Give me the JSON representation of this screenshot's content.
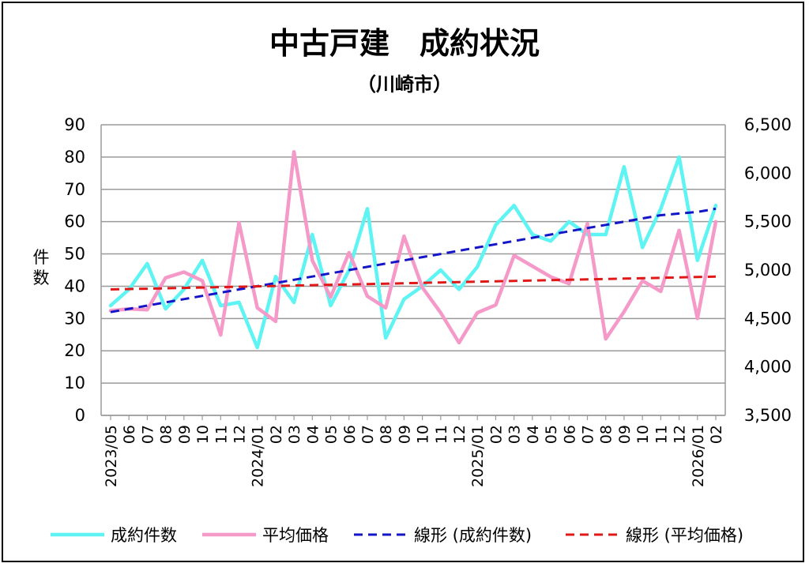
{
  "chart_data": {
    "type": "line",
    "title": "中古戸建　成約状況",
    "subtitle": "（川崎市）",
    "ylabel": "件数",
    "ylim_left": [
      0,
      90
    ],
    "ylim_right": [
      3500,
      6500
    ],
    "yticks_left": [
      "0",
      "10",
      "20",
      "30",
      "40",
      "50",
      "60",
      "70",
      "80",
      "90"
    ],
    "yticks_right": [
      "3,500",
      "4,000",
      "4,500",
      "5,000",
      "5,500",
      "6,000",
      "6,500"
    ],
    "grid": true,
    "legend_position": "bottom",
    "x": [
      "2023/05",
      "06",
      "07",
      "08",
      "09",
      "10",
      "11",
      "12",
      "2024/01",
      "02",
      "03",
      "04",
      "05",
      "06",
      "07",
      "08",
      "09",
      "10",
      "11",
      "12",
      "2025/01",
      "02",
      "03",
      "04",
      "05",
      "06",
      "07",
      "08",
      "09",
      "10",
      "11",
      "12",
      "2026/01",
      "02"
    ],
    "series": [
      {
        "name": "成約件数",
        "axis": "left",
        "color": "#5ff4f4",
        "style": "solid",
        "values": [
          34,
          39,
          47,
          33,
          39,
          48,
          34,
          35,
          21,
          43,
          35,
          56,
          34,
          45,
          64,
          24,
          36,
          40,
          45,
          39,
          46,
          59,
          65,
          56,
          54,
          60,
          56,
          56,
          77,
          52,
          64,
          80,
          48,
          65
        ]
      },
      {
        "name": "平均価格",
        "axis": "right",
        "color": "#f59ac8",
        "style": "solid",
        "values": [
          4580,
          4600,
          4590,
          4920,
          4980,
          4890,
          4330,
          5490,
          4610,
          4470,
          6220,
          5100,
          4720,
          5180,
          4730,
          4610,
          5350,
          4820,
          4560,
          4250,
          4560,
          4640,
          5150,
          5040,
          4930,
          4860,
          5480,
          4290,
          4570,
          4890,
          4780,
          5410,
          4500,
          5500
        ]
      },
      {
        "name": "線形 (成約件数)",
        "axis": "left",
        "color": "#1515c8",
        "style": "dashed",
        "values": [
          32,
          33,
          34,
          35,
          36,
          37,
          38,
          39,
          40,
          41,
          42,
          43,
          44,
          45,
          46,
          47,
          48,
          49,
          50,
          51,
          52,
          53,
          54,
          55,
          56,
          57,
          58,
          59,
          60,
          61,
          62,
          62.5,
          63,
          64
        ]
      },
      {
        "name": "線形 (平均価格)",
        "axis": "right",
        "color": "#e01818",
        "style": "dashed",
        "values": [
          4800,
          4804,
          4808,
          4812,
          4816,
          4820,
          4824,
          4828,
          4832,
          4836,
          4840,
          4844,
          4848,
          4852,
          4856,
          4860,
          4864,
          4868,
          4872,
          4876,
          4880,
          4884,
          4888,
          4892,
          4896,
          4900,
          4904,
          4908,
          4912,
          4916,
          4920,
          4924,
          4928,
          4932
        ]
      }
    ]
  }
}
